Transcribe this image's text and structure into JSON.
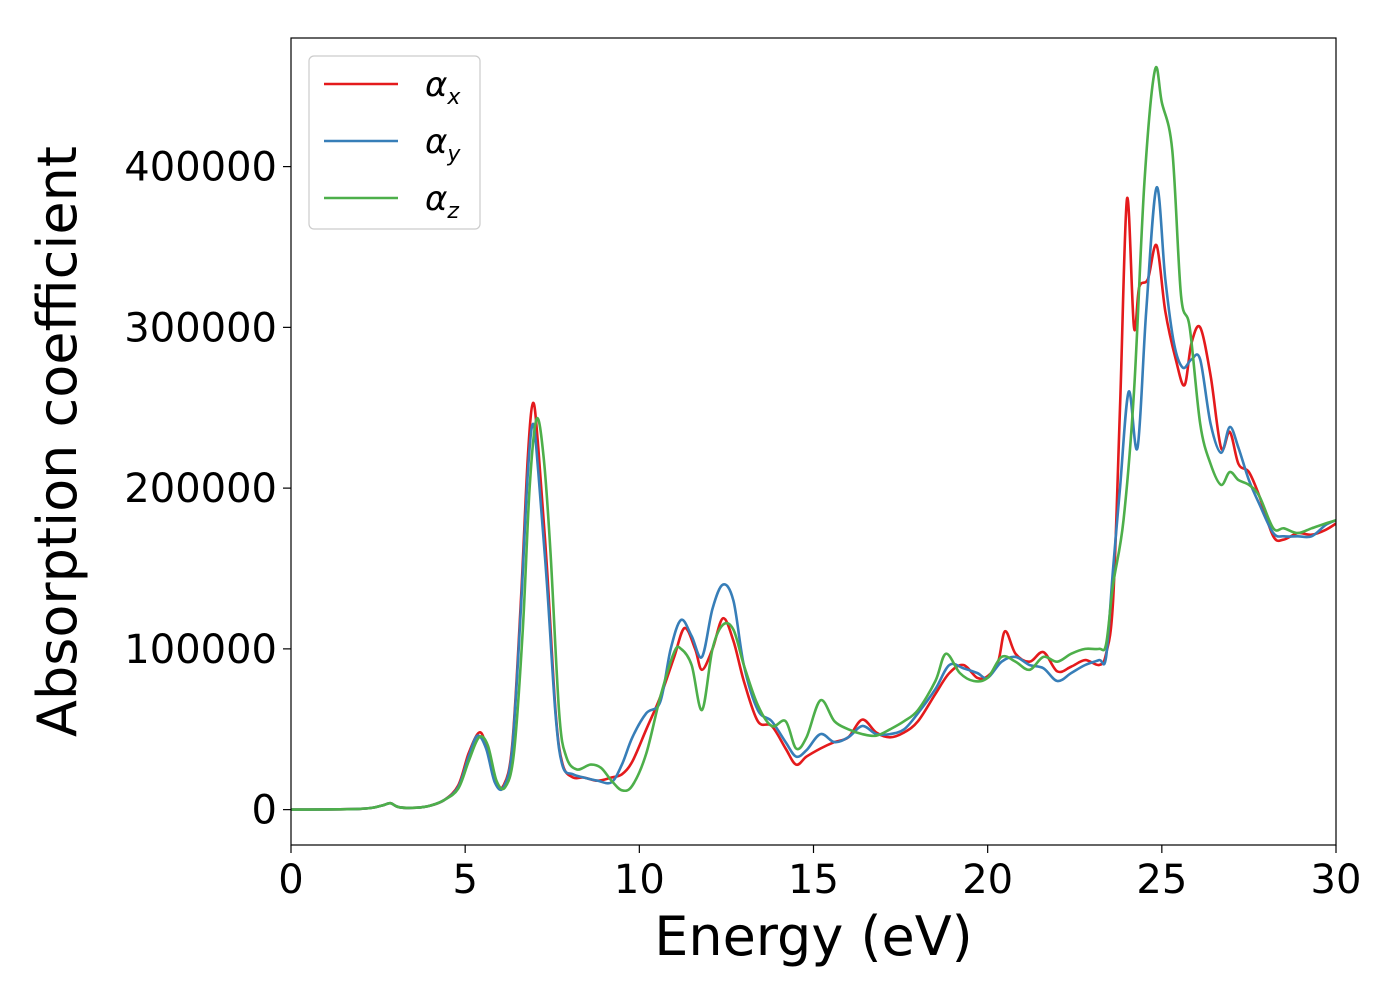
{
  "chart_data": {
    "type": "line",
    "title": "",
    "xlabel": "Energy (eV)",
    "ylabel": "Absorption coefficient",
    "xlim": [
      0,
      30
    ],
    "ylim": [
      -22000,
      480000
    ],
    "xticks": [
      0,
      5,
      10,
      15,
      20,
      25,
      30
    ],
    "yticks": [
      0,
      100000,
      200000,
      300000,
      400000
    ],
    "grid": false,
    "legend_position": "upper-left",
    "series": [
      {
        "name": "α",
        "name_subscript": "x",
        "color": "#e41a1c",
        "x": [
          0,
          2.0,
          2.6,
          2.85,
          3.1,
          3.6,
          4.0,
          4.4,
          4.8,
          5.1,
          5.4,
          5.6,
          5.85,
          6.1,
          6.35,
          6.6,
          6.8,
          6.95,
          7.1,
          7.35,
          7.6,
          7.8,
          8.1,
          8.4,
          8.8,
          9.2,
          9.5,
          9.8,
          10.2,
          10.6,
          11.0,
          11.3,
          11.6,
          11.8,
          12.1,
          12.4,
          12.7,
          13.0,
          13.4,
          13.8,
          14.2,
          14.5,
          14.8,
          15.2,
          15.6,
          16.0,
          16.4,
          16.8,
          17.2,
          17.6,
          18.0,
          18.5,
          18.9,
          19.3,
          19.7,
          20.0,
          20.3,
          20.5,
          20.8,
          21.2,
          21.6,
          22.0,
          22.4,
          22.8,
          23.2,
          23.4,
          23.6,
          23.8,
          24.0,
          24.2,
          24.35,
          24.6,
          24.85,
          25.1,
          25.4,
          25.65,
          25.85,
          26.1,
          26.4,
          26.7,
          26.95,
          27.2,
          27.5,
          27.8,
          28.2,
          28.5,
          28.9,
          29.3,
          29.7,
          30.0
        ],
        "y": [
          0,
          500,
          2500,
          4000,
          1500,
          1200,
          2500,
          6000,
          15000,
          35000,
          48000,
          40000,
          18000,
          15000,
          40000,
          130000,
          220000,
          253000,
          225000,
          150000,
          60000,
          28000,
          20000,
          20000,
          18000,
          20000,
          22000,
          30000,
          50000,
          70000,
          95000,
          113000,
          100000,
          87000,
          100000,
          119000,
          105000,
          80000,
          55000,
          52000,
          38000,
          28000,
          33000,
          38000,
          42000,
          45000,
          56000,
          48000,
          45000,
          48000,
          55000,
          72000,
          85000,
          90000,
          82000,
          83000,
          92000,
          111000,
          97000,
          92000,
          98000,
          86000,
          89000,
          93000,
          90000,
          97000,
          130000,
          250000,
          380000,
          300000,
          325000,
          330000,
          351000,
          310000,
          280000,
          264000,
          290000,
          300000,
          270000,
          225000,
          235000,
          215000,
          210000,
          195000,
          170000,
          168000,
          172000,
          171000,
          174000,
          178000
        ]
      },
      {
        "name": "α",
        "name_subscript": "y",
        "color": "#377eb8",
        "x": [
          0,
          2.0,
          2.6,
          2.85,
          3.1,
          3.6,
          4.0,
          4.4,
          4.8,
          5.1,
          5.35,
          5.6,
          5.85,
          6.1,
          6.35,
          6.6,
          6.8,
          6.95,
          7.1,
          7.35,
          7.6,
          7.8,
          8.1,
          8.4,
          8.8,
          9.2,
          9.5,
          9.8,
          10.2,
          10.6,
          10.9,
          11.2,
          11.5,
          11.8,
          12.1,
          12.4,
          12.7,
          13.0,
          13.4,
          13.8,
          14.2,
          14.5,
          14.8,
          15.2,
          15.6,
          16.0,
          16.4,
          16.8,
          17.2,
          17.6,
          18.0,
          18.5,
          18.9,
          19.3,
          19.7,
          20.0,
          20.4,
          20.8,
          21.2,
          21.6,
          22.0,
          22.4,
          22.8,
          23.2,
          23.4,
          23.6,
          23.8,
          24.05,
          24.3,
          24.55,
          24.85,
          25.1,
          25.35,
          25.6,
          25.85,
          26.1,
          26.4,
          26.7,
          26.95,
          27.2,
          27.5,
          27.8,
          28.2,
          28.5,
          28.9,
          29.3,
          29.7,
          30.0
        ],
        "y": [
          0,
          500,
          2500,
          4000,
          1500,
          1200,
          2500,
          6000,
          14000,
          33000,
          46000,
          38000,
          17000,
          14000,
          38000,
          125000,
          210000,
          240000,
          210000,
          140000,
          58000,
          27000,
          22000,
          20000,
          18000,
          17000,
          28000,
          45000,
          60000,
          67000,
          100000,
          118000,
          108000,
          95000,
          125000,
          140000,
          130000,
          90000,
          62000,
          55000,
          42000,
          33000,
          37000,
          47000,
          42000,
          45000,
          52000,
          47000,
          47000,
          50000,
          60000,
          75000,
          90000,
          88000,
          85000,
          82000,
          92000,
          95000,
          90000,
          88000,
          80000,
          85000,
          90000,
          93000,
          95000,
          150000,
          200000,
          260000,
          225000,
          310000,
          387000,
          330000,
          290000,
          275000,
          280000,
          280000,
          240000,
          222000,
          238000,
          225000,
          205000,
          190000,
          172000,
          170000,
          170000,
          170000,
          177000,
          180000
        ]
      },
      {
        "name": "α",
        "name_subscript": "z",
        "color": "#4daf4a",
        "x": [
          0,
          2.0,
          2.6,
          2.85,
          3.1,
          3.6,
          4.0,
          4.4,
          4.8,
          5.1,
          5.4,
          5.65,
          5.9,
          6.15,
          6.4,
          6.65,
          6.85,
          7.05,
          7.25,
          7.45,
          7.7,
          7.9,
          8.2,
          8.6,
          8.9,
          9.2,
          9.5,
          9.8,
          10.2,
          10.6,
          11.0,
          11.2,
          11.5,
          11.8,
          12.1,
          12.4,
          12.7,
          13.0,
          13.4,
          13.8,
          14.2,
          14.5,
          14.8,
          15.2,
          15.6,
          16.0,
          16.4,
          16.8,
          17.2,
          17.6,
          18.0,
          18.5,
          18.8,
          19.2,
          19.6,
          20.0,
          20.4,
          20.8,
          21.2,
          21.6,
          22.0,
          22.4,
          22.8,
          23.2,
          23.4,
          23.6,
          23.9,
          24.2,
          24.5,
          24.8,
          25.0,
          25.3,
          25.55,
          25.8,
          26.1,
          26.4,
          26.7,
          26.95,
          27.2,
          27.5,
          27.8,
          28.2,
          28.5,
          28.9,
          29.3,
          29.7,
          30.0
        ],
        "y": [
          0,
          500,
          2500,
          4000,
          1500,
          1200,
          2500,
          6000,
          13000,
          30000,
          45000,
          40000,
          18000,
          14000,
          35000,
          110000,
          200000,
          243000,
          220000,
          160000,
          60000,
          33000,
          25000,
          28000,
          26000,
          18000,
          12000,
          15000,
          35000,
          70000,
          98000,
          100000,
          90000,
          62000,
          100000,
          115000,
          112000,
          90000,
          65000,
          52000,
          55000,
          38000,
          45000,
          68000,
          55000,
          50000,
          47000,
          46000,
          50000,
          55000,
          62000,
          80000,
          97000,
          85000,
          80000,
          82000,
          95000,
          92000,
          87000,
          95000,
          92000,
          97000,
          100000,
          100000,
          103000,
          140000,
          180000,
          260000,
          390000,
          460000,
          440000,
          410000,
          320000,
          300000,
          240000,
          215000,
          202000,
          210000,
          205000,
          202000,
          195000,
          175000,
          175000,
          172000,
          175000,
          178000,
          180000
        ]
      }
    ]
  }
}
